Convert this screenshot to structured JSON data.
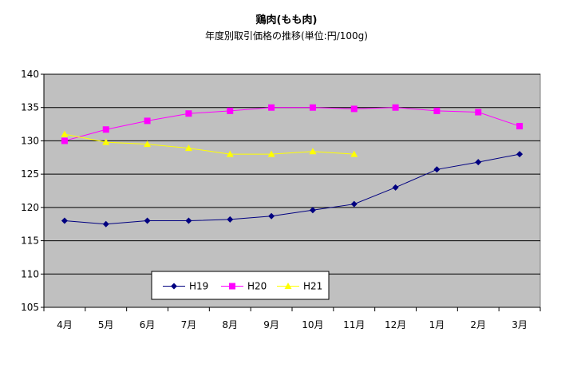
{
  "chart_data": {
    "type": "line",
    "title": "鶏肉(もも肉)",
    "subtitle": "年度別取引価格の推移(単位:円/100g)",
    "xlabel": "",
    "ylabel": "",
    "categories": [
      "4月",
      "5月",
      "6月",
      "7月",
      "8月",
      "9月",
      "10月",
      "11月",
      "12月",
      "1月",
      "2月",
      "3月"
    ],
    "ylim": [
      105,
      140
    ],
    "yticks": [
      105,
      110,
      115,
      120,
      125,
      130,
      135,
      140
    ],
    "grid": true,
    "legend_position": "bottom-left",
    "plot_background": "#c0c0c0",
    "series": [
      {
        "name": "H19",
        "color": "#000080",
        "marker": "diamond",
        "values": [
          118.0,
          117.5,
          118.0,
          118.0,
          118.2,
          118.7,
          119.6,
          120.5,
          123.0,
          125.7,
          126.8,
          128.0
        ]
      },
      {
        "name": "H20",
        "color": "#ff00ff",
        "marker": "square",
        "values": [
          130.0,
          131.7,
          133.0,
          134.1,
          134.5,
          135.0,
          135.0,
          134.8,
          135.0,
          134.5,
          134.3,
          132.2
        ]
      },
      {
        "name": "H21",
        "color": "#ffff00",
        "marker": "triangle",
        "values": [
          131.0,
          129.8,
          129.5,
          128.9,
          128.0,
          128.0,
          128.4,
          128.0,
          null,
          null,
          null,
          null
        ]
      }
    ]
  }
}
